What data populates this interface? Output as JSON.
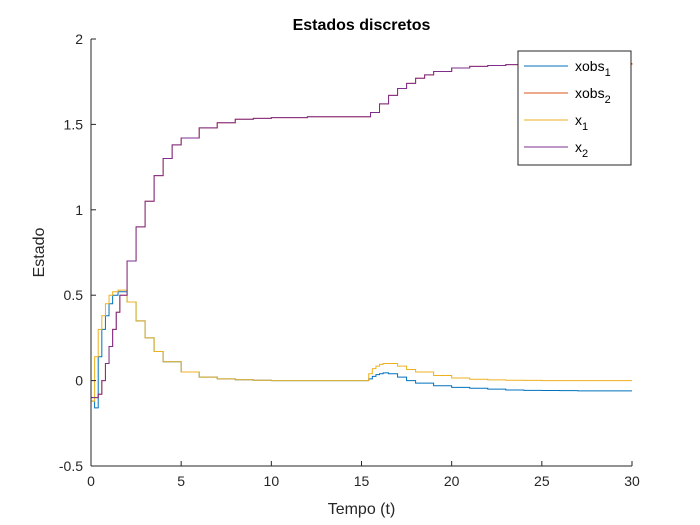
{
  "chart_data": {
    "type": "line",
    "title": "Estados discretos",
    "xlabel": "Tempo (t)",
    "ylabel": "Estado",
    "xlim": [
      0,
      30
    ],
    "ylim": [
      -0.5,
      2
    ],
    "xticks": [
      0,
      5,
      10,
      15,
      20,
      25,
      30
    ],
    "xtick_labels": [
      "0",
      "5",
      "10",
      "15",
      "20",
      "25",
      "30"
    ],
    "yticks": [
      -0.5,
      0,
      0.5,
      1,
      1.5,
      2
    ],
    "ytick_labels": [
      "-0.5",
      "0",
      "0.5",
      "1",
      "1.5",
      "2"
    ],
    "grid": false,
    "legend_position": "top-right",
    "step": true,
    "series": [
      {
        "name": "xobs",
        "name_sub": "1",
        "color": "#0072bd",
        "x": [
          0,
          0.2,
          0.4,
          0.6,
          0.8,
          1.0,
          1.2,
          1.5,
          2,
          2.5,
          3,
          3.5,
          4,
          5,
          6,
          7,
          8,
          9,
          10,
          12,
          15,
          15.4,
          15.6,
          15.8,
          16,
          16.2,
          16.5,
          17,
          17.5,
          18,
          19,
          20,
          21,
          22,
          23,
          24,
          25,
          26,
          27,
          28,
          30
        ],
        "y": [
          -0.12,
          -0.16,
          0.14,
          0.3,
          0.38,
          0.45,
          0.5,
          0.52,
          0.46,
          0.35,
          0.25,
          0.17,
          0.11,
          0.05,
          0.02,
          0.01,
          0.005,
          0.002,
          0.0,
          0.0,
          0.0,
          0.01,
          0.025,
          0.035,
          0.04,
          0.045,
          0.04,
          0.02,
          0.0,
          -0.015,
          -0.03,
          -0.04,
          -0.045,
          -0.05,
          -0.055,
          -0.057,
          -0.058,
          -0.059,
          -0.06,
          -0.06,
          -0.06
        ]
      },
      {
        "name": "xobs",
        "name_sub": "2",
        "color": "#d95319",
        "x": [
          0,
          0.4,
          0.6,
          0.8,
          1.0,
          1.2,
          1.4,
          1.6,
          2,
          2.5,
          3,
          3.5,
          4,
          4.5,
          5,
          6,
          7,
          8,
          9,
          10,
          12,
          15,
          15.5,
          16,
          16.5,
          17,
          17.5,
          18,
          18.5,
          19,
          20,
          21,
          22,
          23,
          24,
          25,
          26,
          27,
          28,
          30
        ],
        "y": [
          -0.1,
          -0.08,
          0.0,
          0.1,
          0.2,
          0.3,
          0.4,
          0.5,
          0.7,
          0.9,
          1.05,
          1.2,
          1.3,
          1.38,
          1.42,
          1.48,
          1.51,
          1.53,
          1.535,
          1.54,
          1.545,
          1.545,
          1.57,
          1.62,
          1.67,
          1.71,
          1.74,
          1.77,
          1.79,
          1.81,
          1.83,
          1.84,
          1.845,
          1.85,
          1.855,
          1.855,
          1.855,
          1.855,
          1.855,
          1.85
        ]
      },
      {
        "name": "x",
        "name_sub": "1",
        "color": "#edb120",
        "x": [
          0,
          0.2,
          0.4,
          0.6,
          0.8,
          1.0,
          1.2,
          1.5,
          2,
          2.5,
          3,
          3.5,
          4,
          5,
          6,
          7,
          8,
          9,
          10,
          12,
          15,
          15.4,
          15.6,
          15.8,
          16,
          16.2,
          16.5,
          17,
          17.5,
          18,
          19,
          20,
          21,
          22,
          23,
          24,
          25,
          26,
          27,
          28,
          30
        ],
        "y": [
          -0.12,
          0.14,
          0.3,
          0.38,
          0.45,
          0.5,
          0.52,
          0.53,
          0.46,
          0.35,
          0.25,
          0.17,
          0.11,
          0.05,
          0.02,
          0.01,
          0.005,
          0.002,
          0.0,
          0.0,
          0.0,
          0.04,
          0.07,
          0.085,
          0.095,
          0.1,
          0.1,
          0.085,
          0.065,
          0.05,
          0.03,
          0.015,
          0.008,
          0.004,
          0.002,
          0.001,
          0.0,
          0.0,
          0.0,
          0.0,
          0.0
        ]
      },
      {
        "name": "x",
        "name_sub": "2",
        "color": "#7e2f8e",
        "x": [
          0,
          0.4,
          0.6,
          0.8,
          1.0,
          1.2,
          1.4,
          1.6,
          2,
          2.5,
          3,
          3.5,
          4,
          4.5,
          5,
          6,
          7,
          8,
          9,
          10,
          12,
          15,
          15.5,
          16,
          16.5,
          17,
          17.5,
          18,
          18.5,
          19,
          20,
          21,
          22,
          23,
          24,
          25,
          26,
          27,
          28,
          30
        ],
        "y": [
          -0.1,
          -0.08,
          0.0,
          0.1,
          0.2,
          0.3,
          0.4,
          0.5,
          0.7,
          0.9,
          1.05,
          1.2,
          1.3,
          1.38,
          1.42,
          1.48,
          1.51,
          1.53,
          1.535,
          1.54,
          1.545,
          1.545,
          1.57,
          1.62,
          1.67,
          1.71,
          1.74,
          1.77,
          1.79,
          1.81,
          1.83,
          1.84,
          1.845,
          1.85,
          1.855,
          1.855,
          1.855,
          1.855,
          1.855,
          1.855
        ]
      }
    ]
  }
}
